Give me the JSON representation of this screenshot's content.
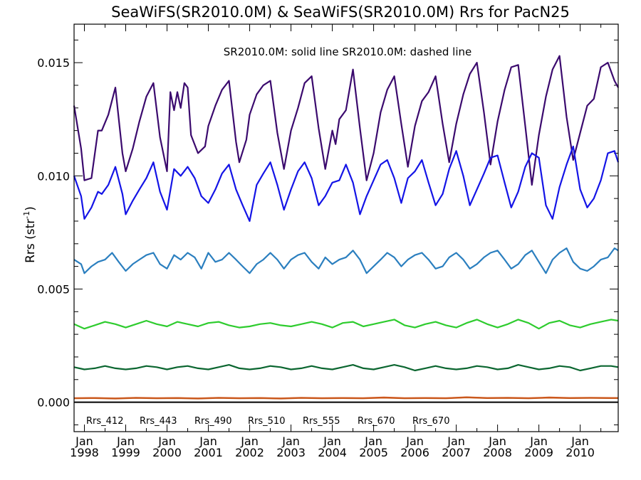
{
  "chart_data": {
    "type": "line",
    "title": "SeaWiFS(SR2010.0M) & SeaWiFS(SR2010.0M)  Rrs for PacN25",
    "annotation": "SR2010.0M: solid line   SR2010.0M: dashed line",
    "ylabel": "Rrs (str",
    "ylabel_superscript": "-1",
    "ylabel_suffix": ")",
    "ylim": [
      -0.0013,
      0.0167
    ],
    "yticks": [
      0.0,
      0.005,
      0.01,
      0.015
    ],
    "ytick_labels": [
      "0.000",
      "0.005",
      "0.010",
      "0.015"
    ],
    "xlim": [
      1997.75,
      2010.92
    ],
    "x_tick_month_label": "Jan",
    "x_tick_years": [
      1998,
      1999,
      2000,
      2001,
      2002,
      2003,
      2004,
      2005,
      2006,
      2007,
      2008,
      2009,
      2010
    ],
    "x_tick_year_labels": [
      "1998",
      "1999",
      "2000",
      "2001",
      "2002",
      "2003",
      "2004",
      "2005",
      "2006",
      "2007",
      "2008",
      "2009",
      "2010"
    ],
    "zero_line": 0.0,
    "legend_placement": "bottom, inside axes",
    "series": [
      {
        "name": "Rrs_412",
        "color": "#3b0a6e",
        "x": [
          1997.75,
          1997.92,
          1998.0,
          1998.17,
          1998.33,
          1998.42,
          1998.58,
          1998.75,
          1998.92,
          1999.0,
          1999.17,
          1999.33,
          1999.5,
          1999.67,
          1999.83,
          2000.0,
          2000.08,
          2000.17,
          2000.25,
          2000.33,
          2000.42,
          2000.5,
          2000.58,
          2000.75,
          2000.92,
          2001.0,
          2001.17,
          2001.33,
          2001.5,
          2001.67,
          2001.75,
          2001.92,
          2002.0,
          2002.17,
          2002.33,
          2002.5,
          2002.67,
          2002.83,
          2003.0,
          2003.17,
          2003.33,
          2003.5,
          2003.67,
          2003.83,
          2004.0,
          2004.08,
          2004.17,
          2004.33,
          2004.5,
          2004.67,
          2004.83,
          2005.0,
          2005.17,
          2005.33,
          2005.5,
          2005.67,
          2005.83,
          2006.0,
          2006.17,
          2006.33,
          2006.5,
          2006.67,
          2006.83,
          2007.0,
          2007.17,
          2007.33,
          2007.5,
          2007.67,
          2007.83,
          2008.0,
          2008.17,
          2008.33,
          2008.5,
          2008.67,
          2008.83,
          2009.0,
          2009.17,
          2009.33,
          2009.5,
          2009.67,
          2009.83,
          2010.0,
          2010.17,
          2010.33,
          2010.5,
          2010.67,
          2010.83,
          2010.92
        ],
        "values": [
          0.0131,
          0.0112,
          0.0098,
          0.0099,
          0.012,
          0.012,
          0.0127,
          0.0139,
          0.011,
          0.0102,
          0.0112,
          0.0124,
          0.0135,
          0.0141,
          0.0117,
          0.0102,
          0.0137,
          0.0129,
          0.0137,
          0.013,
          0.0141,
          0.0139,
          0.0118,
          0.011,
          0.0113,
          0.0122,
          0.0131,
          0.0138,
          0.0142,
          0.0115,
          0.0106,
          0.0116,
          0.0127,
          0.0136,
          0.014,
          0.0142,
          0.0119,
          0.0103,
          0.012,
          0.013,
          0.0141,
          0.0144,
          0.0121,
          0.0103,
          0.012,
          0.0114,
          0.0125,
          0.0129,
          0.0147,
          0.0121,
          0.0098,
          0.011,
          0.0128,
          0.0138,
          0.0144,
          0.0123,
          0.0104,
          0.0122,
          0.0133,
          0.0137,
          0.0144,
          0.0123,
          0.0106,
          0.0123,
          0.0136,
          0.0145,
          0.015,
          0.0128,
          0.0105,
          0.0124,
          0.0138,
          0.0148,
          0.0149,
          0.0122,
          0.0096,
          0.0118,
          0.0135,
          0.0147,
          0.0153,
          0.0126,
          0.0107,
          0.0119,
          0.0131,
          0.0134,
          0.0148,
          0.015,
          0.0142,
          0.0139
        ]
      },
      {
        "name": "Rrs_443",
        "color": "#1414e6",
        "x": [
          1997.75,
          1997.92,
          1998.0,
          1998.17,
          1998.33,
          1998.42,
          1998.58,
          1998.75,
          1998.92,
          1999.0,
          1999.17,
          1999.33,
          1999.5,
          1999.67,
          1999.83,
          2000.0,
          2000.17,
          2000.33,
          2000.5,
          2000.67,
          2000.83,
          2001.0,
          2001.17,
          2001.33,
          2001.5,
          2001.67,
          2001.83,
          2002.0,
          2002.17,
          2002.33,
          2002.5,
          2002.67,
          2002.83,
          2003.0,
          2003.17,
          2003.33,
          2003.5,
          2003.67,
          2003.83,
          2004.0,
          2004.17,
          2004.33,
          2004.5,
          2004.67,
          2004.83,
          2005.0,
          2005.17,
          2005.33,
          2005.5,
          2005.67,
          2005.83,
          2006.0,
          2006.17,
          2006.33,
          2006.5,
          2006.67,
          2006.83,
          2007.0,
          2007.17,
          2007.33,
          2007.5,
          2007.67,
          2007.83,
          2008.0,
          2008.17,
          2008.33,
          2008.5,
          2008.67,
          2008.83,
          2009.0,
          2009.17,
          2009.33,
          2009.5,
          2009.67,
          2009.83,
          2010.0,
          2010.17,
          2010.33,
          2010.5,
          2010.67,
          2010.83,
          2010.92
        ],
        "values": [
          0.01,
          0.0091,
          0.0081,
          0.0086,
          0.0093,
          0.0092,
          0.0096,
          0.0104,
          0.0092,
          0.0083,
          0.0089,
          0.0094,
          0.0099,
          0.0106,
          0.0093,
          0.0085,
          0.0103,
          0.01,
          0.0104,
          0.0099,
          0.0091,
          0.0088,
          0.0094,
          0.0101,
          0.0105,
          0.0094,
          0.0087,
          0.008,
          0.0096,
          0.0101,
          0.0106,
          0.0096,
          0.0085,
          0.0094,
          0.0102,
          0.0106,
          0.0099,
          0.0087,
          0.0091,
          0.0097,
          0.0098,
          0.0105,
          0.0097,
          0.0083,
          0.0091,
          0.0098,
          0.0105,
          0.0107,
          0.0099,
          0.0088,
          0.0099,
          0.0102,
          0.0107,
          0.0097,
          0.0087,
          0.0092,
          0.0103,
          0.0111,
          0.01,
          0.0087,
          0.0094,
          0.0101,
          0.0108,
          0.0109,
          0.0097,
          0.0086,
          0.0093,
          0.0104,
          0.011,
          0.0108,
          0.0087,
          0.0081,
          0.0095,
          0.0105,
          0.0113,
          0.0094,
          0.0086,
          0.009,
          0.0098,
          0.011,
          0.0111,
          0.0106
        ]
      },
      {
        "name": "Rrs_490",
        "color": "#2b7fbf",
        "x": [
          1997.75,
          1997.92,
          1998.0,
          1998.17,
          1998.33,
          1998.5,
          1998.67,
          1998.83,
          1999.0,
          1999.17,
          1999.33,
          1999.5,
          1999.67,
          1999.83,
          2000.0,
          2000.17,
          2000.33,
          2000.5,
          2000.67,
          2000.83,
          2001.0,
          2001.17,
          2001.33,
          2001.5,
          2001.67,
          2001.83,
          2002.0,
          2002.17,
          2002.33,
          2002.5,
          2002.67,
          2002.83,
          2003.0,
          2003.17,
          2003.33,
          2003.5,
          2003.67,
          2003.83,
          2004.0,
          2004.17,
          2004.33,
          2004.5,
          2004.67,
          2004.83,
          2005.0,
          2005.17,
          2005.33,
          2005.5,
          2005.67,
          2005.83,
          2006.0,
          2006.17,
          2006.33,
          2006.5,
          2006.67,
          2006.83,
          2007.0,
          2007.17,
          2007.33,
          2007.5,
          2007.67,
          2007.83,
          2008.0,
          2008.17,
          2008.33,
          2008.5,
          2008.67,
          2008.83,
          2009.0,
          2009.17,
          2009.33,
          2009.5,
          2009.67,
          2009.83,
          2010.0,
          2010.17,
          2010.33,
          2010.5,
          2010.67,
          2010.83,
          2010.92
        ],
        "values": [
          0.0063,
          0.0061,
          0.0057,
          0.006,
          0.0062,
          0.0063,
          0.0066,
          0.0062,
          0.0058,
          0.0061,
          0.0063,
          0.0065,
          0.0066,
          0.0061,
          0.0059,
          0.0065,
          0.0063,
          0.0066,
          0.0064,
          0.0059,
          0.0066,
          0.0062,
          0.0063,
          0.0066,
          0.0063,
          0.006,
          0.0057,
          0.0061,
          0.0063,
          0.0066,
          0.0063,
          0.0059,
          0.0063,
          0.0065,
          0.0066,
          0.0062,
          0.0059,
          0.0064,
          0.0061,
          0.0063,
          0.0064,
          0.0067,
          0.0063,
          0.0057,
          0.006,
          0.0063,
          0.0066,
          0.0064,
          0.006,
          0.0063,
          0.0065,
          0.0066,
          0.0063,
          0.0059,
          0.006,
          0.0064,
          0.0066,
          0.0063,
          0.0059,
          0.0061,
          0.0064,
          0.0066,
          0.0067,
          0.0063,
          0.0059,
          0.0061,
          0.0065,
          0.0067,
          0.0062,
          0.0057,
          0.0063,
          0.0066,
          0.0068,
          0.0062,
          0.0059,
          0.0058,
          0.006,
          0.0063,
          0.0064,
          0.0068,
          0.0067
        ]
      },
      {
        "name": "Rrs_510",
        "color": "#2ecc2e",
        "x": [
          1997.75,
          1998.0,
          1998.25,
          1998.5,
          1998.75,
          1999.0,
          1999.25,
          1999.5,
          1999.75,
          2000.0,
          2000.25,
          2000.5,
          2000.75,
          2001.0,
          2001.25,
          2001.5,
          2001.75,
          2002.0,
          2002.25,
          2002.5,
          2002.75,
          2003.0,
          2003.25,
          2003.5,
          2003.75,
          2004.0,
          2004.25,
          2004.5,
          2004.75,
          2005.0,
          2005.25,
          2005.5,
          2005.75,
          2006.0,
          2006.25,
          2006.5,
          2006.75,
          2007.0,
          2007.25,
          2007.5,
          2007.75,
          2008.0,
          2008.25,
          2008.5,
          2008.75,
          2009.0,
          2009.25,
          2009.5,
          2009.75,
          2010.0,
          2010.25,
          2010.5,
          2010.75,
          2010.92
        ],
        "values": [
          0.00345,
          0.00325,
          0.0034,
          0.00355,
          0.00345,
          0.0033,
          0.00345,
          0.0036,
          0.00345,
          0.00335,
          0.00355,
          0.00345,
          0.00335,
          0.0035,
          0.00355,
          0.0034,
          0.0033,
          0.00335,
          0.00345,
          0.0035,
          0.0034,
          0.00335,
          0.00345,
          0.00355,
          0.00345,
          0.0033,
          0.0035,
          0.00355,
          0.00335,
          0.00345,
          0.00355,
          0.00365,
          0.0034,
          0.0033,
          0.00345,
          0.00355,
          0.0034,
          0.0033,
          0.0035,
          0.00365,
          0.00345,
          0.0033,
          0.00345,
          0.00365,
          0.0035,
          0.00325,
          0.0035,
          0.0036,
          0.0034,
          0.0033,
          0.00345,
          0.00355,
          0.00365,
          0.0036
        ]
      },
      {
        "name": "Rrs_555",
        "color": "#0b6630",
        "x": [
          1997.75,
          1998.0,
          1998.25,
          1998.5,
          1998.75,
          1999.0,
          1999.25,
          1999.5,
          1999.75,
          2000.0,
          2000.25,
          2000.5,
          2000.75,
          2001.0,
          2001.25,
          2001.5,
          2001.75,
          2002.0,
          2002.25,
          2002.5,
          2002.75,
          2003.0,
          2003.25,
          2003.5,
          2003.75,
          2004.0,
          2004.25,
          2004.5,
          2004.75,
          2005.0,
          2005.25,
          2005.5,
          2005.75,
          2006.0,
          2006.25,
          2006.5,
          2006.75,
          2007.0,
          2007.25,
          2007.5,
          2007.75,
          2008.0,
          2008.25,
          2008.5,
          2008.75,
          2009.0,
          2009.25,
          2009.5,
          2009.75,
          2010.0,
          2010.25,
          2010.5,
          2010.75,
          2010.92
        ],
        "values": [
          0.00155,
          0.00145,
          0.0015,
          0.0016,
          0.0015,
          0.00145,
          0.0015,
          0.0016,
          0.00155,
          0.00145,
          0.00155,
          0.0016,
          0.0015,
          0.00145,
          0.00155,
          0.00165,
          0.0015,
          0.00145,
          0.0015,
          0.0016,
          0.00155,
          0.00145,
          0.0015,
          0.0016,
          0.0015,
          0.00145,
          0.00155,
          0.00165,
          0.0015,
          0.00145,
          0.00155,
          0.00165,
          0.00155,
          0.0014,
          0.0015,
          0.0016,
          0.0015,
          0.00145,
          0.0015,
          0.0016,
          0.00155,
          0.00145,
          0.0015,
          0.00165,
          0.00155,
          0.00145,
          0.0015,
          0.0016,
          0.00155,
          0.0014,
          0.0015,
          0.0016,
          0.0016,
          0.00155
        ]
      },
      {
        "name": "Rrs_670",
        "color": "#e0501a",
        "x": [
          1997.75,
          1998.25,
          1998.75,
          1999.25,
          1999.75,
          2000.25,
          2000.75,
          2001.25,
          2001.75,
          2002.25,
          2002.75,
          2003.25,
          2003.75,
          2004.25,
          2004.75,
          2005.25,
          2005.75,
          2006.25,
          2006.75,
          2007.25,
          2007.75,
          2008.25,
          2008.75,
          2009.25,
          2009.75,
          2010.25,
          2010.75,
          2010.92
        ],
        "values": [
          0.00018,
          0.00019,
          0.00017,
          0.0002,
          0.00018,
          0.00019,
          0.00017,
          0.0002,
          0.00018,
          0.00019,
          0.00017,
          0.0002,
          0.00018,
          0.00019,
          0.00018,
          0.00021,
          0.00018,
          0.00019,
          0.00018,
          0.00022,
          0.00019,
          0.0002,
          0.00018,
          0.00021,
          0.00019,
          0.0002,
          0.00019,
          0.00019
        ]
      },
      {
        "name": "Rrs_670",
        "color": "#c85a1e",
        "x": [
          1997.75,
          1998.25,
          1998.75,
          1999.25,
          1999.75,
          2000.25,
          2000.75,
          2001.25,
          2001.75,
          2002.25,
          2002.75,
          2003.25,
          2003.75,
          2004.25,
          2004.75,
          2005.25,
          2005.75,
          2006.25,
          2006.75,
          2007.25,
          2007.75,
          2008.25,
          2008.75,
          2009.25,
          2009.75,
          2010.25,
          2010.75,
          2010.92
        ],
        "values": [
          0.00017,
          0.00018,
          0.00016,
          0.00019,
          0.00017,
          0.00018,
          0.00016,
          0.00019,
          0.00017,
          0.00018,
          0.00016,
          0.00019,
          0.00017,
          0.00018,
          0.00017,
          0.0002,
          0.00017,
          0.00018,
          0.00017,
          0.00021,
          0.00018,
          0.00019,
          0.00017,
          0.0002,
          0.00018,
          0.00019,
          0.00018,
          0.00018
        ]
      }
    ]
  }
}
